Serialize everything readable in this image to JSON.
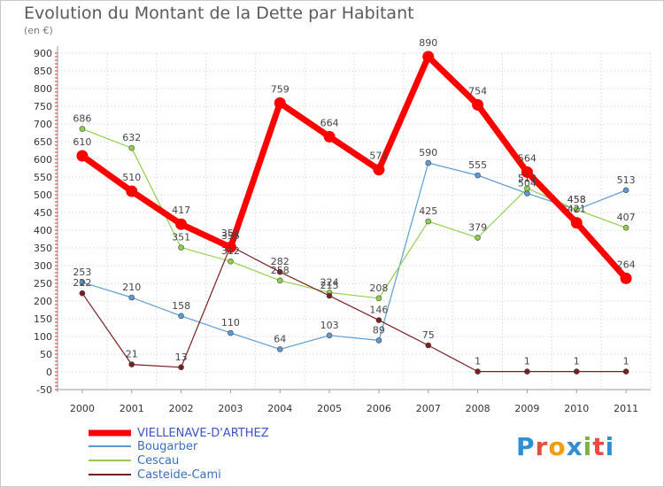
{
  "title": "Evolution du Montant de la Dette par Habitant",
  "unit": "(en €)",
  "logo": {
    "text": "Proxiti",
    "letters": [
      "P",
      "r",
      "o",
      "x",
      "i",
      "t",
      "i"
    ],
    "colors": [
      "#2f8fd6",
      "#e74c3c",
      "#f39c12",
      "#2f8fd6",
      "#7cb342",
      "#e74c3c",
      "#2f8fd6"
    ]
  },
  "chart_data": {
    "type": "line",
    "x": [
      "2000",
      "2001",
      "2002",
      "2003",
      "2004",
      "2005",
      "2006",
      "2007",
      "2008",
      "2009",
      "2010",
      "2011"
    ],
    "ylim": [
      -50,
      900
    ],
    "yticks": [
      -50,
      0,
      50,
      100,
      150,
      200,
      250,
      300,
      350,
      400,
      450,
      500,
      550,
      600,
      650,
      700,
      750,
      800,
      850,
      900
    ],
    "grid": true,
    "series": [
      {
        "name": "VIELLENAVE-D'ARTHEZ",
        "color": "#ff0000",
        "values": [
          610,
          510,
          417,
          352,
          759,
          664,
          571,
          890,
          754,
          564,
          421,
          264
        ],
        "labels": [
          "610",
          "510",
          "417",
          "352",
          "759",
          "664",
          "571",
          "890",
          "754",
          "564",
          "421",
          "264"
        ]
      },
      {
        "name": "Bougarber",
        "color": "#5b9bd5",
        "values": [
          253,
          210,
          158,
          110,
          64,
          103,
          89,
          590,
          555,
          504,
          458,
          513
        ],
        "labels": [
          "253",
          "210",
          "158",
          "110",
          "64",
          "103",
          "89",
          "590",
          "555",
          "504",
          "458",
          "513"
        ]
      },
      {
        "name": "Cescau",
        "color": "#8fd14f",
        "values": [
          686,
          632,
          351,
          312,
          258,
          224,
          208,
          425,
          379,
          518,
          458,
          407
        ],
        "labels": [
          "686",
          "632",
          "351",
          "312",
          "258",
          "224",
          "208",
          "425",
          "379",
          "518",
          "458",
          "407"
        ]
      },
      {
        "name": "Casteide-Cami",
        "color": "#7b1f1f",
        "values": [
          222,
          21,
          13,
          355,
          282,
          215,
          146,
          75,
          1,
          1,
          1,
          1
        ],
        "labels": [
          "222",
          "21",
          "13",
          "355",
          "282",
          "215",
          "146",
          "75",
          "1",
          "1",
          "1",
          "1"
        ]
      }
    ]
  }
}
